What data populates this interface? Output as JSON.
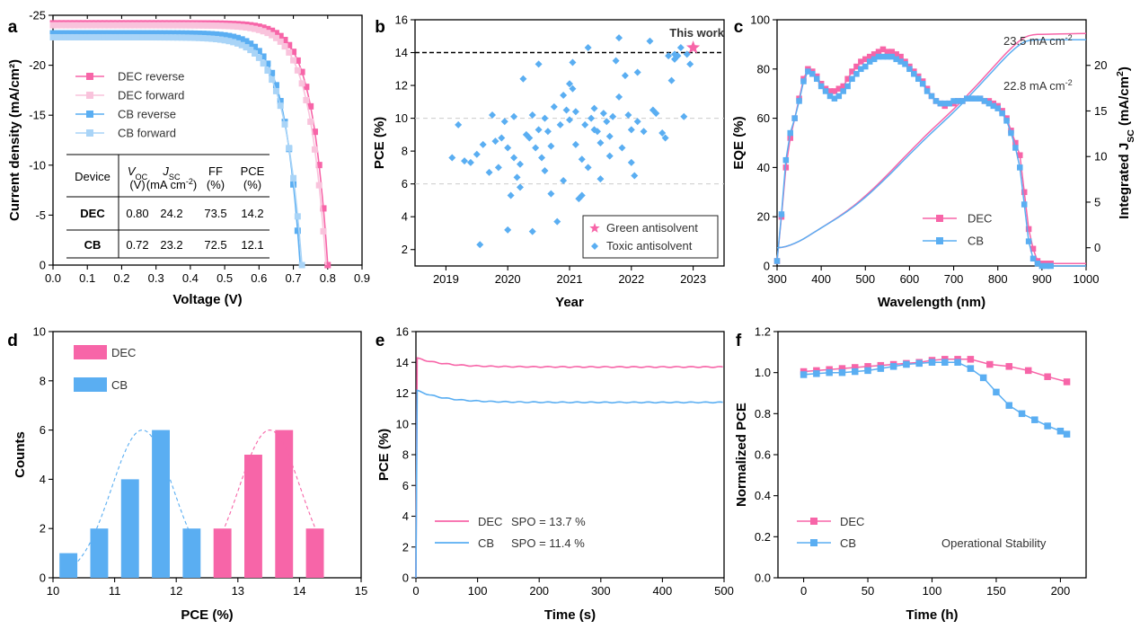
{
  "colors": {
    "pink": "#f765a8",
    "pink_light": "#f9c3dc",
    "blue": "#5aaef2",
    "blue_light": "#a9d4f7"
  },
  "chart_data": [
    {
      "panel": "a",
      "type": "line",
      "xlabel": "Voltage (V)",
      "ylabel": "Current density (mA/cm²)",
      "xlim": [
        0,
        0.9
      ],
      "ylim": [
        0,
        -25
      ],
      "xticks": [
        "0.0",
        "0.1",
        "0.2",
        "0.3",
        "0.4",
        "0.5",
        "0.6",
        "0.7",
        "0.8",
        "0.9"
      ],
      "yticks": [
        "0",
        "-5",
        "-10",
        "-15",
        "-20",
        "-25"
      ],
      "series": [
        {
          "name": "DEC reverse",
          "voc": 0.8,
          "jsc": 24.2,
          "n": 1.8
        },
        {
          "name": "DEC forward",
          "voc": 0.795,
          "jsc": 24.0,
          "n": 1.9
        },
        {
          "name": "CB reverse",
          "voc": 0.72,
          "jsc": 23.2,
          "n": 1.8
        },
        {
          "name": "CB forward",
          "voc": 0.725,
          "jsc": 22.8,
          "n": 2.0
        }
      ],
      "table": {
        "header": [
          "Device",
          "V",
          "J",
          "FF",
          "PCE"
        ],
        "header_sub": [
          "OC",
          "SC"
        ],
        "units": [
          "(V)",
          "(mA cm",
          "(%)",
          "(%)"
        ],
        "rows": [
          {
            "device": "DEC",
            "voc": "0.80",
            "jsc": "24.2",
            "ff": "73.5",
            "pce": "14.2"
          },
          {
            "device": "CB",
            "voc": "0.72",
            "jsc": "23.2",
            "ff": "72.5",
            "pce": "12.1"
          }
        ]
      }
    },
    {
      "panel": "b",
      "type": "scatter",
      "xlabel": "Year",
      "ylabel": "PCE (%)",
      "xlim": [
        2018.5,
        2023.5
      ],
      "ylim": [
        1,
        16
      ],
      "xticks": [
        "2019",
        "2020",
        "2021",
        "2022",
        "2023"
      ],
      "yticks": [
        "2",
        "4",
        "6",
        "8",
        "10",
        "12",
        "14",
        "16"
      ],
      "reference_line": 14,
      "annotation": "This work",
      "this_work": {
        "x": 2023.0,
        "y": 14.3
      },
      "legend": [
        "Green antisolvent",
        "Toxic antisolvent"
      ],
      "points": [
        [
          2019.1,
          7.6
        ],
        [
          2019.2,
          9.6
        ],
        [
          2019.3,
          7.4
        ],
        [
          2019.4,
          7.3
        ],
        [
          2019.5,
          7.8
        ],
        [
          2019.55,
          2.3
        ],
        [
          2019.6,
          8.4
        ],
        [
          2019.7,
          6.7
        ],
        [
          2019.75,
          10.2
        ],
        [
          2019.8,
          8.6
        ],
        [
          2019.85,
          7.0
        ],
        [
          2019.9,
          8.8
        ],
        [
          2019.95,
          9.8
        ],
        [
          2020.0,
          8.2
        ],
        [
          2020.0,
          3.2
        ],
        [
          2020.05,
          5.3
        ],
        [
          2020.1,
          10.1
        ],
        [
          2020.1,
          7.6
        ],
        [
          2020.15,
          6.4
        ],
        [
          2020.2,
          7.2
        ],
        [
          2020.2,
          5.8
        ],
        [
          2020.25,
          12.4
        ],
        [
          2020.3,
          9.0
        ],
        [
          2020.35,
          8.8
        ],
        [
          2020.4,
          10.2
        ],
        [
          2020.4,
          3.1
        ],
        [
          2020.45,
          8.2
        ],
        [
          2020.5,
          13.3
        ],
        [
          2020.5,
          9.3
        ],
        [
          2020.55,
          7.6
        ],
        [
          2020.6,
          10.0
        ],
        [
          2020.65,
          9.2
        ],
        [
          2020.7,
          8.3
        ],
        [
          2020.7,
          5.4
        ],
        [
          2020.75,
          10.7
        ],
        [
          2020.8,
          3.7
        ],
        [
          2020.85,
          9.6
        ],
        [
          2020.9,
          11.4
        ],
        [
          2020.95,
          10.5
        ],
        [
          2021.0,
          12.1
        ],
        [
          2021.0,
          9.9
        ],
        [
          2021.05,
          11.8
        ],
        [
          2021.05,
          13.4
        ],
        [
          2021.1,
          10.4
        ],
        [
          2021.1,
          8.4
        ],
        [
          2021.15,
          5.1
        ],
        [
          2021.2,
          5.3
        ],
        [
          2021.2,
          7.5
        ],
        [
          2021.25,
          9.6
        ],
        [
          2021.3,
          14.3
        ],
        [
          2021.3,
          7.0
        ],
        [
          2021.35,
          10.0
        ],
        [
          2021.4,
          10.6
        ],
        [
          2021.45,
          9.2
        ],
        [
          2021.5,
          8.5
        ],
        [
          2021.5,
          6.3
        ],
        [
          2021.55,
          10.3
        ],
        [
          2021.6,
          9.8
        ],
        [
          2021.65,
          7.7
        ],
        [
          2021.7,
          10.1
        ],
        [
          2021.75,
          13.5
        ],
        [
          2021.8,
          14.9
        ],
        [
          2021.8,
          11.3
        ],
        [
          2021.85,
          8.2
        ],
        [
          2021.9,
          12.6
        ],
        [
          2021.95,
          10.2
        ],
        [
          2022.0,
          9.3
        ],
        [
          2022.0,
          7.3
        ],
        [
          2022.05,
          6.5
        ],
        [
          2022.1,
          12.8
        ],
        [
          2022.1,
          9.8
        ],
        [
          2022.2,
          9.2
        ],
        [
          2022.3,
          14.7
        ],
        [
          2022.35,
          10.5
        ],
        [
          2022.4,
          10.3
        ],
        [
          2022.5,
          9.1
        ],
        [
          2022.55,
          8.8
        ],
        [
          2022.6,
          13.8
        ],
        [
          2022.65,
          12.3
        ],
        [
          2022.7,
          13.9
        ],
        [
          2022.75,
          13.8
        ],
        [
          2022.8,
          14.3
        ],
        [
          2022.85,
          10.1
        ],
        [
          2022.9,
          13.9
        ],
        [
          2022.95,
          13.3
        ],
        [
          2022.7,
          13.6
        ],
        [
          2021.65,
          8.9
        ],
        [
          2021.4,
          9.3
        ],
        [
          2020.6,
          6.8
        ],
        [
          2020.9,
          6.2
        ]
      ]
    },
    {
      "panel": "c",
      "type": "line",
      "xlabel": "Wavelength (nm)",
      "ylabel": "EQE (%)",
      "y2label": "Integrated J",
      "y2label_sub": "SC",
      "y2label_unit": " (mA/cm",
      "xlim": [
        300,
        1000
      ],
      "ylim": [
        0,
        100
      ],
      "y2lim": [
        -2,
        25
      ],
      "xticks": [
        "300",
        "400",
        "500",
        "600",
        "700",
        "800",
        "900",
        "1000"
      ],
      "yticks": [
        "0",
        "20",
        "40",
        "60",
        "80",
        "100"
      ],
      "y2ticks": [
        "0",
        "5",
        "10",
        "15",
        "20"
      ],
      "annotations": [
        "23.5 mA cm",
        "22.8 mA cm"
      ],
      "annotation_sup": "-2",
      "eqe_wavelength": [
        300,
        310,
        320,
        330,
        340,
        350,
        360,
        370,
        380,
        390,
        400,
        410,
        420,
        430,
        440,
        450,
        460,
        470,
        480,
        490,
        500,
        510,
        520,
        530,
        540,
        550,
        560,
        570,
        580,
        590,
        600,
        610,
        620,
        630,
        640,
        650,
        660,
        670,
        680,
        690,
        700,
        710,
        720,
        730,
        740,
        750,
        760,
        770,
        780,
        790,
        800,
        810,
        820,
        830,
        840,
        850,
        860,
        870,
        880,
        890,
        900,
        910,
        920,
        940,
        960,
        980,
        1000
      ],
      "series": [
        {
          "name": "DEC",
          "eqe": [
            2,
            20,
            40,
            52,
            60,
            68,
            76,
            80,
            79,
            77,
            74,
            72,
            71,
            71,
            72,
            73,
            76,
            79,
            81,
            83,
            84,
            85,
            86,
            87,
            88,
            87,
            87,
            86,
            85,
            83,
            81,
            79,
            77,
            75,
            72,
            69,
            67,
            66,
            65,
            66,
            66,
            67,
            67,
            68,
            68,
            68,
            68,
            67,
            67,
            66,
            65,
            63,
            60,
            55,
            50,
            45,
            30,
            15,
            7,
            2,
            1,
            1,
            1,
            1,
            1,
            1,
            1
          ],
          "integrated_end": 23.5
        },
        {
          "name": "CB",
          "eqe": [
            2,
            21,
            43,
            54,
            60,
            67,
            75,
            79,
            78,
            76,
            73,
            71,
            69,
            68,
            69,
            71,
            73,
            76,
            78,
            80,
            81,
            83,
            84,
            85,
            85,
            85,
            85,
            84,
            83,
            82,
            80,
            78,
            76,
            74,
            71,
            69,
            67,
            66,
            66,
            66,
            67,
            67,
            67,
            68,
            68,
            68,
            68,
            67,
            66,
            65,
            64,
            62,
            59,
            54,
            48,
            40,
            25,
            10,
            3,
            1,
            0,
            0,
            0,
            0,
            0,
            0,
            0
          ],
          "integrated_end": 22.8
        }
      ]
    },
    {
      "panel": "d",
      "type": "bar",
      "xlabel": "PCE (%)",
      "ylabel": "Counts",
      "xlim": [
        10,
        15
      ],
      "ylim": [
        0,
        10
      ],
      "xticks": [
        "10",
        "11",
        "12",
        "13",
        "14",
        "15"
      ],
      "yticks": [
        "0",
        "2",
        "4",
        "6",
        "8",
        "10"
      ],
      "series": [
        {
          "name": "DEC",
          "x": [
            12.75,
            13.25,
            13.75,
            14.25
          ],
          "values": [
            2,
            5,
            6,
            2
          ]
        },
        {
          "name": "CB",
          "x": [
            10.25,
            10.75,
            11.25,
            11.75,
            12.25
          ],
          "values": [
            1,
            2,
            4,
            6,
            2
          ]
        }
      ]
    },
    {
      "panel": "e",
      "type": "line",
      "xlabel": "Time (s)",
      "ylabel": "PCE (%)",
      "xlim": [
        0,
        500
      ],
      "ylim": [
        0,
        16
      ],
      "xticks": [
        "0",
        "100",
        "200",
        "300",
        "400",
        "500"
      ],
      "yticks": [
        "0",
        "2",
        "4",
        "6",
        "8",
        "10",
        "12",
        "14",
        "16"
      ],
      "series": [
        {
          "name": "DEC",
          "spo_label": "SPO = 13.7 %",
          "start": 14.3,
          "end": 13.7
        },
        {
          "name": "CB",
          "spo_label": "SPO = 11.4 %",
          "start": 12.2,
          "end": 11.4
        }
      ]
    },
    {
      "panel": "f",
      "type": "line",
      "xlabel": "Time (h)",
      "ylabel": "Normalized PCE",
      "xlim": [
        -20,
        220
      ],
      "ylim": [
        0,
        1.2
      ],
      "xticks": [
        "0",
        "50",
        "100",
        "150",
        "200"
      ],
      "yticks": [
        "0.0",
        "0.2",
        "0.4",
        "0.6",
        "0.8",
        "1.0",
        "1.2"
      ],
      "annotation": "Operational Stability",
      "series": [
        {
          "name": "DEC",
          "x": [
            0,
            10,
            20,
            30,
            40,
            50,
            60,
            70,
            80,
            90,
            100,
            110,
            120,
            130,
            145,
            160,
            175,
            190,
            205
          ],
          "values": [
            1.005,
            1.01,
            1.015,
            1.02,
            1.025,
            1.03,
            1.035,
            1.04,
            1.045,
            1.05,
            1.06,
            1.065,
            1.065,
            1.065,
            1.04,
            1.03,
            1.01,
            0.98,
            0.955
          ]
        },
        {
          "name": "CB",
          "x": [
            0,
            10,
            20,
            30,
            40,
            50,
            60,
            70,
            80,
            90,
            100,
            110,
            120,
            130,
            140,
            150,
            160,
            170,
            180,
            190,
            200,
            205
          ],
          "values": [
            0.99,
            0.995,
            1.0,
            1.0,
            1.005,
            1.01,
            1.02,
            1.03,
            1.04,
            1.045,
            1.05,
            1.05,
            1.05,
            1.02,
            0.975,
            0.905,
            0.84,
            0.8,
            0.77,
            0.74,
            0.715,
            0.7
          ]
        }
      ]
    }
  ]
}
